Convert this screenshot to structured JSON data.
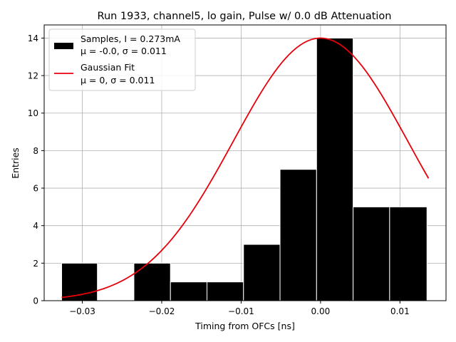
{
  "chart_data": {
    "type": "bar",
    "title": "Run 1933, channel5, lo gain, Pulse w/ 0.0 dB Attenuation",
    "xlabel": "Timing from OFCs [ns]",
    "ylabel": "Entries",
    "xlim": [
      -0.0348,
      0.0158
    ],
    "ylim": [
      0,
      14.7
    ],
    "x_ticks": [
      -0.03,
      -0.02,
      -0.01,
      0.0,
      0.01
    ],
    "x_tick_labels": [
      "−0.03",
      "−0.02",
      "−0.01",
      "0.00",
      "0.01"
    ],
    "y_ticks": [
      0,
      2,
      4,
      6,
      8,
      10,
      12,
      14
    ],
    "y_tick_labels": [
      "0",
      "2",
      "4",
      "6",
      "8",
      "10",
      "12",
      "14"
    ],
    "grid": true,
    "legend_position": "top-left",
    "histogram": {
      "name": "Samples, I = 0.273mA",
      "stats_label": "μ = -0.0, σ = 0.011",
      "color": "#000000",
      "edge_color": "#ffffff",
      "bin_edges": [
        -0.0326,
        -0.0281,
        -0.0235,
        -0.0189,
        -0.0143,
        -0.0097,
        -0.0051,
        -0.0005,
        0.0041,
        0.0087,
        0.0134
      ],
      "counts": [
        2,
        0,
        2,
        1,
        1,
        3,
        7,
        14,
        5,
        5
      ]
    },
    "fit": {
      "name": "Gaussian Fit",
      "stats_label": "μ = 0, σ = 0.011",
      "color": "#e8000b",
      "amplitude": 14,
      "mu": 0,
      "sigma": 0.011,
      "x_range": [
        -0.0326,
        0.0136
      ]
    }
  }
}
